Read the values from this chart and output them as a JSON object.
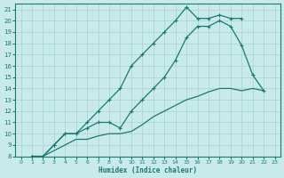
{
  "xlabel": "Humidex (Indice chaleur)",
  "bg_color": "#c8eaea",
  "line_color": "#1a7a6e",
  "grid_color": "#a8d4d0",
  "xlim": [
    -0.5,
    23.5
  ],
  "ylim": [
    8,
    21.5
  ],
  "xticks": [
    0,
    1,
    2,
    3,
    4,
    5,
    6,
    7,
    8,
    9,
    10,
    11,
    12,
    13,
    14,
    15,
    16,
    17,
    18,
    19,
    20,
    21,
    22,
    23
  ],
  "yticks": [
    8,
    9,
    10,
    11,
    12,
    13,
    14,
    15,
    16,
    17,
    18,
    19,
    20,
    21
  ],
  "line1_x": [
    1,
    2,
    3,
    4,
    5,
    6,
    7,
    8,
    9,
    10,
    11,
    12,
    13,
    14,
    15,
    16,
    17,
    18,
    19,
    20
  ],
  "line1_y": [
    8.0,
    8.0,
    9.0,
    10.0,
    10.0,
    11.0,
    12.0,
    13.0,
    14.0,
    16.0,
    17.0,
    18.0,
    19.0,
    20.0,
    21.2,
    20.2,
    20.2,
    20.5,
    20.2,
    20.2
  ],
  "line2_x": [
    1,
    2,
    3,
    4,
    5,
    6,
    7,
    8,
    9,
    10,
    11,
    12,
    13,
    14,
    15,
    16,
    17,
    18,
    19,
    20,
    21,
    22
  ],
  "line2_y": [
    8.0,
    8.0,
    9.0,
    10.0,
    10.0,
    10.5,
    11.0,
    11.0,
    10.5,
    12.0,
    13.0,
    14.0,
    15.0,
    16.5,
    18.5,
    19.5,
    19.5,
    20.0,
    19.5,
    17.8,
    15.2,
    13.8
  ],
  "line3_x": [
    1,
    2,
    3,
    4,
    5,
    6,
    7,
    8,
    9,
    10,
    11,
    12,
    13,
    14,
    15,
    16,
    17,
    18,
    19,
    20,
    21,
    22
  ],
  "line3_y": [
    8.0,
    8.0,
    8.5,
    9.0,
    9.5,
    9.5,
    9.8,
    10.0,
    10.0,
    10.2,
    10.8,
    11.5,
    12.0,
    12.5,
    13.0,
    13.3,
    13.7,
    14.0,
    14.0,
    13.8,
    14.0,
    13.8
  ]
}
